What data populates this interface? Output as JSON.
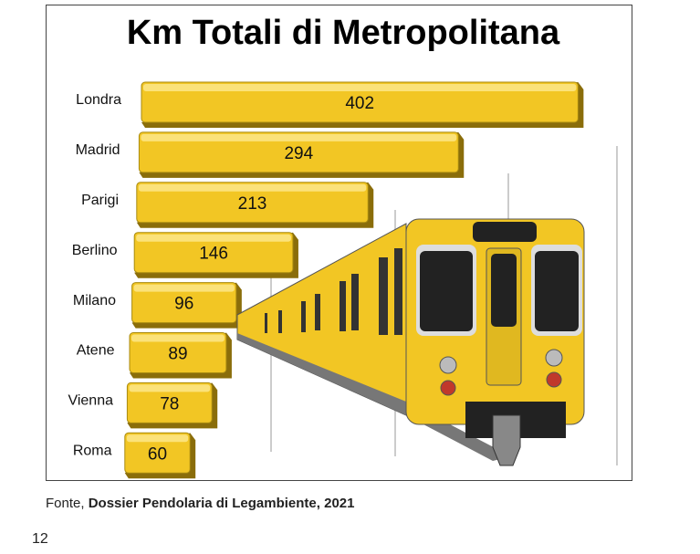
{
  "chart_data": {
    "type": "bar",
    "orientation": "horizontal",
    "title": "Km Totali di Metropolitana",
    "categories": [
      "Londra",
      "Madrid",
      "Parigi",
      "Berlino",
      "Milano",
      "Atene",
      "Vienna",
      "Roma"
    ],
    "values": [
      402,
      294,
      213,
      146,
      96,
      89,
      78,
      60
    ],
    "color": "#f2c624"
  },
  "source": {
    "prefix": "Fonte,",
    "name": "Dossier Pendolaria di Legambiente, 2021"
  },
  "page_number": 12
}
